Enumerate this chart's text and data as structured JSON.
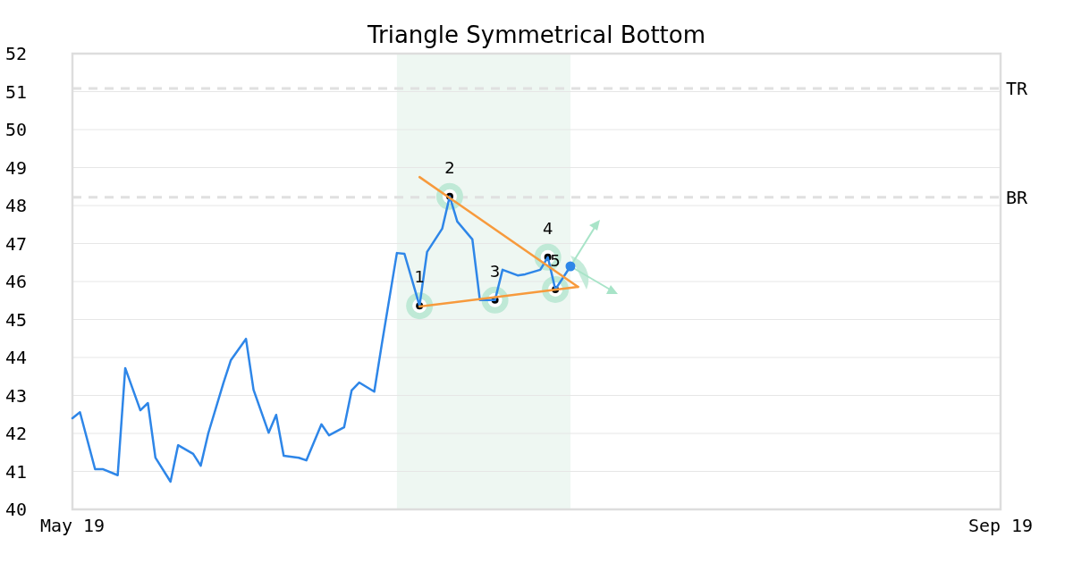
{
  "chart_data": {
    "type": "line",
    "title": "Triangle Symmetrical Bottom",
    "x": [
      "2019-05-01",
      "2019-05-02",
      "2019-05-04",
      "2019-05-05",
      "2019-05-07",
      "2019-05-08",
      "2019-05-10",
      "2019-05-11",
      "2019-05-12",
      "2019-05-14",
      "2019-05-15",
      "2019-05-17",
      "2019-05-18",
      "2019-05-19",
      "2019-05-21",
      "2019-05-22",
      "2019-05-24",
      "2019-05-25",
      "2019-05-27",
      "2019-05-28",
      "2019-05-29",
      "2019-05-31",
      "2019-06-01",
      "2019-06-03",
      "2019-06-04",
      "2019-06-06",
      "2019-06-07",
      "2019-06-08",
      "2019-06-10",
      "2019-06-11",
      "2019-06-13",
      "2019-06-14",
      "2019-06-16",
      "2019-06-17",
      "2019-06-19",
      "2019-06-20",
      "2019-06-21",
      "2019-06-23",
      "2019-06-24",
      "2019-06-26",
      "2019-06-27",
      "2019-06-29",
      "2019-06-30",
      "2019-07-02",
      "2019-07-03",
      "2019-07-04",
      "2019-07-06"
    ],
    "xlim": [
      "2019-05-01",
      "2019-09-01"
    ],
    "xticks": [
      {
        "value": "2019-05-01",
        "label": "May 19"
      },
      {
        "value": "2019-09-01",
        "label": "Sep 19"
      }
    ],
    "ylim": [
      40,
      52
    ],
    "yticks": [
      40,
      41,
      42,
      43,
      44,
      45,
      46,
      47,
      48,
      49,
      50,
      51,
      52
    ],
    "grid": "y",
    "series": [
      {
        "color": "#2e86e8",
        "values": [
          42.4,
          42.56,
          41.06,
          41.06,
          40.9,
          43.72,
          42.61,
          42.8,
          41.36,
          40.73,
          41.69,
          41.46,
          41.15,
          42.0,
          43.32,
          43.93,
          44.49,
          43.15,
          42.02,
          42.49,
          41.41,
          41.36,
          41.29,
          42.24,
          41.95,
          42.16,
          43.13,
          43.34,
          43.1,
          44.35,
          46.75,
          46.73,
          45.36,
          46.78,
          47.39,
          48.24,
          47.58,
          47.11,
          45.51,
          45.51,
          46.31,
          46.16,
          46.19,
          46.31,
          46.64,
          45.79,
          46.4
        ]
      },
      {
        "type": "line",
        "color": "#f79a3c",
        "x": [
          "2019-06-16",
          "2019-07-07"
        ],
        "values": [
          48.75,
          45.86
        ]
      },
      {
        "type": "line",
        "color": "#f79a3c",
        "x": [
          "2019-06-16",
          "2019-07-07"
        ],
        "values": [
          45.34,
          45.86
        ]
      },
      {
        "type": "scatter",
        "color": "#000000",
        "x": [
          "2019-06-16",
          "2019-06-20",
          "2019-06-26",
          "2019-07-03",
          "2019-07-04"
        ],
        "values": [
          45.36,
          48.24,
          45.51,
          46.64,
          45.79
        ]
      },
      {
        "type": "scatter",
        "color": "#2e86e8",
        "x": [
          "2019-07-06"
        ],
        "values": [
          46.4
        ]
      }
    ],
    "bands": [
      {
        "axis": "x",
        "from": "2019-06-13",
        "to": "2019-07-06",
        "color": "#eef7f2"
      }
    ],
    "ref_lines": [
      {
        "axis": "y",
        "value": 51.08,
        "label": "TR",
        "color": "#e0e0e0",
        "line_style": "dashed"
      },
      {
        "axis": "y",
        "value": 48.22,
        "label": "BR",
        "color": "#e0e0e0",
        "line_style": "dashed"
      }
    ],
    "annotations": [
      {
        "text": "1",
        "x": "2019-06-16",
        "y": 45.36
      },
      {
        "text": "2",
        "x": "2019-06-20",
        "y": 48.24
      },
      {
        "text": "3",
        "x": "2019-06-26",
        "y": 45.51
      },
      {
        "text": "4",
        "x": "2019-07-03",
        "y": 46.64
      },
      {
        "text": "5",
        "x": "2019-07-04",
        "y": 45.79
      }
    ]
  }
}
